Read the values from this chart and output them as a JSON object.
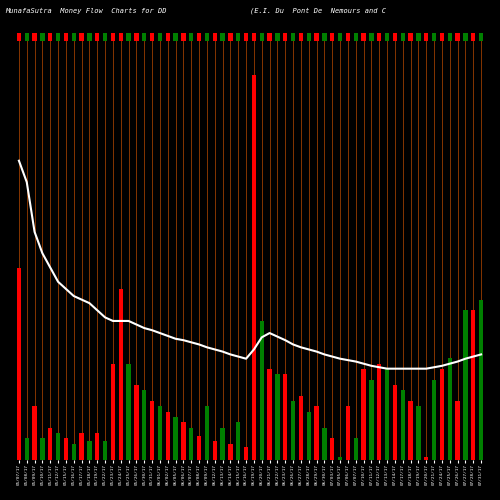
{
  "title_left": "MunafaSutra  Money Flow  Charts for DD",
  "title_right": "(E.I. Du  Pont De  Nemours and C",
  "background_color": "#000000",
  "line_color": "#ffffff",
  "orange_line_color": "#b84a00",
  "n_bars": 60,
  "categories": [
    "05/07/17",
    "05/08/17",
    "05/09/17",
    "05/10/17",
    "05/11/17",
    "05/12/17",
    "05/15/17",
    "05/16/17",
    "05/17/17",
    "05/18/17",
    "05/19/17",
    "05/22/17",
    "05/23/17",
    "05/24/17",
    "05/25/17",
    "05/26/17",
    "05/30/17",
    "05/31/17",
    "06/01/17",
    "06/02/17",
    "06/05/17",
    "06/06/17",
    "06/07/17",
    "06/08/17",
    "06/09/17",
    "06/12/17",
    "06/13/17",
    "06/14/17",
    "06/15/17",
    "06/16/17",
    "06/19/17",
    "06/20/17",
    "06/21/17",
    "06/22/17",
    "06/23/17",
    "06/26/17",
    "06/27/17",
    "06/28/17",
    "06/29/17",
    "06/30/17",
    "07/03/17",
    "07/05/17",
    "07/06/17",
    "07/07/17",
    "07/10/17",
    "07/11/17",
    "07/12/17",
    "07/13/17",
    "07/14/17",
    "07/17/17",
    "07/18/17",
    "07/19/17",
    "07/20/17",
    "07/21/17",
    "07/24/17",
    "07/25/17",
    "07/26/17",
    "07/27/17",
    "07/28/17",
    "07/31/17"
  ],
  "bar_heights": [
    180,
    20,
    50,
    20,
    30,
    25,
    20,
    15,
    25,
    18,
    25,
    18,
    90,
    160,
    90,
    70,
    65,
    55,
    50,
    45,
    40,
    35,
    30,
    22,
    50,
    18,
    30,
    15,
    35,
    12,
    360,
    130,
    85,
    80,
    80,
    55,
    60,
    45,
    50,
    30,
    20,
    3,
    50,
    20,
    85,
    75,
    90,
    85,
    70,
    65,
    55,
    50,
    3,
    75,
    85,
    95,
    55,
    140,
    140,
    150
  ],
  "colors": [
    "red",
    "green",
    "red",
    "green",
    "red",
    "green",
    "red",
    "green",
    "red",
    "green",
    "red",
    "green",
    "red",
    "red",
    "green",
    "red",
    "green",
    "red",
    "green",
    "red",
    "green",
    "red",
    "green",
    "red",
    "green",
    "red",
    "green",
    "red",
    "green",
    "red",
    "red",
    "green",
    "red",
    "green",
    "red",
    "green",
    "red",
    "green",
    "red",
    "green",
    "red",
    "green",
    "red",
    "green",
    "red",
    "green",
    "red",
    "green",
    "red",
    "green",
    "red",
    "green",
    "red",
    "green",
    "red",
    "green",
    "red",
    "green",
    "red",
    "green"
  ],
  "line_values": [
    0.82,
    0.79,
    0.72,
    0.69,
    0.67,
    0.65,
    0.64,
    0.63,
    0.625,
    0.62,
    0.61,
    0.6,
    0.595,
    0.595,
    0.595,
    0.59,
    0.585,
    0.582,
    0.578,
    0.574,
    0.57,
    0.568,
    0.565,
    0.562,
    0.558,
    0.555,
    0.552,
    0.548,
    0.545,
    0.542,
    0.555,
    0.572,
    0.578,
    0.573,
    0.568,
    0.562,
    0.558,
    0.555,
    0.552,
    0.548,
    0.545,
    0.542,
    0.54,
    0.538,
    0.535,
    0.532,
    0.53,
    0.528,
    0.528,
    0.528,
    0.528,
    0.528,
    0.528,
    0.53,
    0.532,
    0.535,
    0.538,
    0.542,
    0.545,
    0.548
  ],
  "ylim": [
    0,
    400
  ],
  "line_display_range": [
    0.4,
    1.0
  ]
}
